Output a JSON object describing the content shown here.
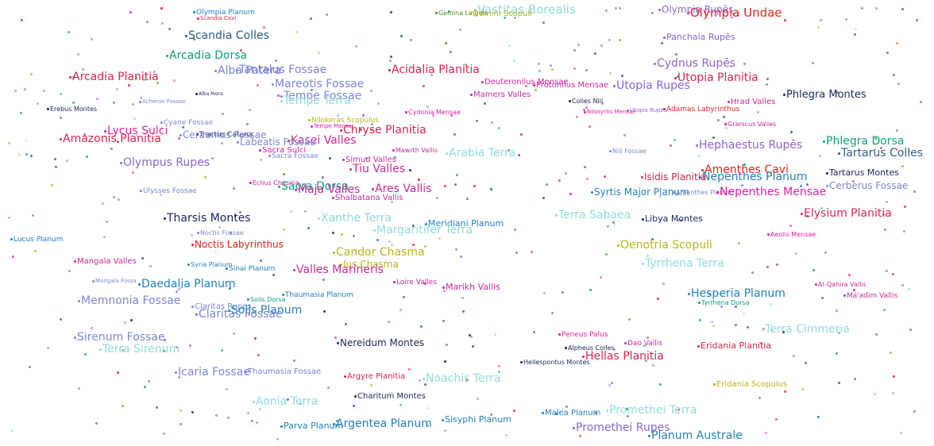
{
  "palette": {
    "c1": "#d6264c",
    "c2": "#2a5d8a",
    "c3": "#0d9d7e",
    "c4": "#7b86d6",
    "c5": "#8a63d2",
    "c6": "#1f7fbf",
    "c7": "#c42a9a",
    "c8": "#b04ab0",
    "c9": "#18255e",
    "c10": "#8fdcdc",
    "c11": "#b8b41a",
    "c12": "#e01fa6",
    "c13": "#e3221c",
    "c14": "#4b8a1f",
    "c15": "#5d68c8"
  },
  "labels": [
    {
      "text": "Vastitas Borealis",
      "color": "c10"
    },
    {
      "text": "Olympia Undae",
      "color": "c13"
    },
    {
      "text": "Olympia Rupēs",
      "color": "c5"
    },
    {
      "text": "Olympia Planum",
      "color": "c6"
    },
    {
      "text": "Scandia Cavi",
      "color": "c1"
    },
    {
      "text": "Gemina Lingula",
      "color": "c14"
    },
    {
      "text": "Gemini Scopuli",
      "color": "c11"
    },
    {
      "text": "Scandia Colles",
      "color": "c2"
    },
    {
      "text": "Panchaia Rupēs",
      "color": "c5"
    },
    {
      "text": "Arcadia Dorsa",
      "color": "c3"
    },
    {
      "text": "Cydnus Rupēs",
      "color": "c5"
    },
    {
      "text": "Arcadia Planitia",
      "color": "c1"
    },
    {
      "text": "Alba Patera",
      "color": "c4"
    },
    {
      "text": "Tantalus Fossae",
      "color": "c4"
    },
    {
      "text": "Acidalia Planitia",
      "color": "c1"
    },
    {
      "text": "Utopia Planitia",
      "color": "c1"
    },
    {
      "text": "Mareotis Fossae",
      "color": "c4"
    },
    {
      "text": "Deuteronilus Mensae",
      "color": "c12"
    },
    {
      "text": "Protonilus Mensae",
      "color": "c12"
    },
    {
      "text": "Utopia Rupēs",
      "color": "c5"
    },
    {
      "text": "Tempe Fossae",
      "color": "c4"
    },
    {
      "text": "Tempe Terra",
      "color": "c10"
    },
    {
      "text": "Mamers Valles",
      "color": "c7"
    },
    {
      "text": "Phlegra Montes",
      "color": "c9"
    },
    {
      "text": "Erebus Montes",
      "color": "c9"
    },
    {
      "text": "Alba Mons",
      "color": "c9"
    },
    {
      "text": "Acheron Fossae",
      "color": "c4"
    },
    {
      "text": "Colles Nili",
      "color": "c9"
    },
    {
      "text": "Hrad Valles",
      "color": "c7"
    },
    {
      "text": "Adamas Labyrinthus",
      "color": "c13"
    },
    {
      "text": "Cydonia Mensae",
      "color": "c12"
    },
    {
      "text": "Nilosyrtis Mensae",
      "color": "c12"
    },
    {
      "text": "Utopia Rupes",
      "color": "c5"
    },
    {
      "text": "Nilokeras Scopulus",
      "color": "c11"
    },
    {
      "text": "Cyane Fossae",
      "color": "c4"
    },
    {
      "text": "Granicus Valles",
      "color": "c7"
    },
    {
      "text": "Lycus Sulci",
      "color": "c12"
    },
    {
      "text": "Chryse Planitia",
      "color": "c1"
    },
    {
      "text": "Tractus Catena",
      "color": "c9"
    },
    {
      "text": "Ceraunius Fossae",
      "color": "c4"
    },
    {
      "text": "Amazonis Planitia",
      "color": "c1"
    },
    {
      "text": "Kasei Valles",
      "color": "c7"
    },
    {
      "text": "Tempe Mensa",
      "color": "c12"
    },
    {
      "text": "Labeatis Fossae",
      "color": "c4"
    },
    {
      "text": "Hephaestus Rupēs",
      "color": "c5"
    },
    {
      "text": "Phlegra Dorsa",
      "color": "c3"
    },
    {
      "text": "Tartarus Colles",
      "color": "c2"
    },
    {
      "text": "Sacra Sulci",
      "color": "c12"
    },
    {
      "text": "Sacra Fossae",
      "color": "c4"
    },
    {
      "text": "Arabia Terra",
      "color": "c10"
    },
    {
      "text": "Mawrth Vallis",
      "color": "c7"
    },
    {
      "text": "Nili Fossae",
      "color": "c4"
    },
    {
      "text": "Olympus Rupes",
      "color": "c5"
    },
    {
      "text": "Simud Valles",
      "color": "c7"
    },
    {
      "text": "Tiu Valles",
      "color": "c7"
    },
    {
      "text": "Amenthes Cavi",
      "color": "c13"
    },
    {
      "text": "Tartarus Montes",
      "color": "c9"
    },
    {
      "text": "Nepenthes Planum",
      "color": "c6"
    },
    {
      "text": "Isidis Planitia",
      "color": "c1"
    },
    {
      "text": "Ulysses Fossae",
      "color": "c4"
    },
    {
      "text": "Echus Chasma",
      "color": "c12"
    },
    {
      "text": "Sacra Dorsa",
      "color": "c3"
    },
    {
      "text": "Maja Valles",
      "color": "c7"
    },
    {
      "text": "Ares Vallis",
      "color": "c7"
    },
    {
      "text": "Syrtis Major Planum",
      "color": "c6"
    },
    {
      "text": "Amenthes Planum",
      "color": "c4"
    },
    {
      "text": "Cerberus Fossae",
      "color": "c4"
    },
    {
      "text": "Nepenthes Mensae",
      "color": "c12"
    },
    {
      "text": "Shalbatana Vallis",
      "color": "c7"
    },
    {
      "text": "Tharsis Montes",
      "color": "c9"
    },
    {
      "text": "Xanthe Terra",
      "color": "c10"
    },
    {
      "text": "Meridiani Planum",
      "color": "c6"
    },
    {
      "text": "Terra Sabaea",
      "color": "c10"
    },
    {
      "text": "Libya Montes",
      "color": "c9"
    },
    {
      "text": "Elysium Planitia",
      "color": "c1"
    },
    {
      "text": "Margaritifer Terra",
      "color": "c10"
    },
    {
      "text": "Lucus Planum",
      "color": "c6"
    },
    {
      "text": "Noctis Fossae",
      "color": "c4"
    },
    {
      "text": "Aeolis Mensae",
      "color": "c12"
    },
    {
      "text": "Noctis Labyrinthus",
      "color": "c13"
    },
    {
      "text": "Oenotria Scopuli",
      "color": "c11"
    },
    {
      "text": "Candor Chasma",
      "color": "c11"
    },
    {
      "text": "Mangala Valles",
      "color": "c7"
    },
    {
      "text": "Ius Chasma",
      "color": "c11"
    },
    {
      "text": "Tyrrhena Terra",
      "color": "c10"
    },
    {
      "text": "Syria Planum",
      "color": "c6"
    },
    {
      "text": "Sinai Planum",
      "color": "c6"
    },
    {
      "text": "Valles Marineris",
      "color": "c7"
    },
    {
      "text": "Mangala Fossa",
      "color": "c4"
    },
    {
      "text": "Daedalia Planum",
      "color": "c6"
    },
    {
      "text": "Loire Valles",
      "color": "c7"
    },
    {
      "text": "Marikh Vallis",
      "color": "c7"
    },
    {
      "text": "Al-Qahira Vallis",
      "color": "c7"
    },
    {
      "text": "Memnonia Fossae",
      "color": "c4"
    },
    {
      "text": "Solis Dorsa",
      "color": "c3"
    },
    {
      "text": "Thaumasia Planum",
      "color": "c6"
    },
    {
      "text": "Hesperia Planum",
      "color": "c6"
    },
    {
      "text": "Ma'adim Vallis",
      "color": "c7"
    },
    {
      "text": "Claritas Rupes",
      "color": "c4"
    },
    {
      "text": "Solis Planum",
      "color": "c6"
    },
    {
      "text": "Claritas Fossae",
      "color": "c4"
    },
    {
      "text": "Tyrrhena Dorsa",
      "color": "c3"
    },
    {
      "text": "Terra Cimmeria",
      "color": "c10"
    },
    {
      "text": "Sirenum Fossae",
      "color": "c4"
    },
    {
      "text": "Peneus Palus",
      "color": "c12"
    },
    {
      "text": "Nereidum Montes",
      "color": "c9"
    },
    {
      "text": "Terra Sirenum",
      "color": "c10"
    },
    {
      "text": "Alpheus Colles",
      "color": "c9"
    },
    {
      "text": "Eridania Planitia",
      "color": "c1"
    },
    {
      "text": "Hellas Planitia",
      "color": "c1"
    },
    {
      "text": "Dao Vallis",
      "color": "c7"
    },
    {
      "text": "Hellespontus Montes",
      "color": "c9"
    },
    {
      "text": "Icaria Fossae",
      "color": "c4"
    },
    {
      "text": "Thaumasia Fossae",
      "color": "c4"
    },
    {
      "text": "Argyre Planitia",
      "color": "c1"
    },
    {
      "text": "Noachis Terra",
      "color": "c10"
    },
    {
      "text": "Eridania Scopulus",
      "color": "c11"
    },
    {
      "text": "Charitum Montes",
      "color": "c9"
    },
    {
      "text": "Aonia Terra",
      "color": "c10"
    },
    {
      "text": "Malea Planum",
      "color": "c6"
    },
    {
      "text": "Promethei Terra",
      "color": "c10"
    },
    {
      "text": "Sisyphi Planum",
      "color": "c6"
    },
    {
      "text": "Argentea Planum",
      "color": "c6"
    },
    {
      "text": "Parva Planum",
      "color": "c6"
    },
    {
      "text": "Promethei Rupes",
      "color": "c5"
    },
    {
      "text": "Planum Australe",
      "color": "c6"
    }
  ]
}
